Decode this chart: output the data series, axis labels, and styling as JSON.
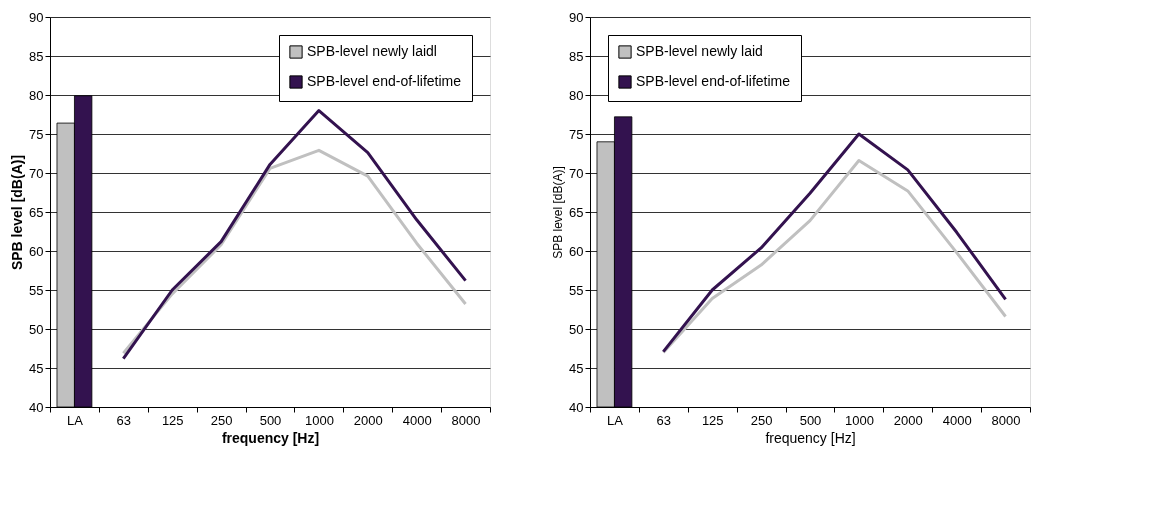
{
  "chart_data": [
    {
      "type": "bar",
      "categories": [
        "LA",
        "63",
        "125",
        "250",
        "500",
        "1000",
        "2000",
        "4000",
        "8000"
      ],
      "xlabel": "frequency [Hz]",
      "ylabel": "SPB level [dB(A)]",
      "ylim": [
        40,
        90
      ],
      "yticks": [
        40,
        45,
        50,
        55,
        60,
        65,
        70,
        75,
        80,
        85,
        90
      ],
      "grid": "y",
      "legend": "top right",
      "series": [
        {
          "name": "SPB-level newly laidl",
          "color": "#c0c0c0",
          "values": [
            76.4,
            null,
            null,
            null,
            null,
            null,
            null,
            null,
            null
          ]
        },
        {
          "name": "SPB-level end-of-lifetime",
          "color": "#33124f",
          "values": [
            79.9,
            null,
            null,
            null,
            null,
            null,
            null,
            null,
            null
          ]
        },
        {
          "type": "line",
          "color": "#c0c0c0",
          "values": [
            null,
            46.9,
            54.5,
            60.8,
            70.6,
            72.9,
            69.6,
            61.0,
            53.2
          ]
        },
        {
          "type": "line",
          "color": "#33124f",
          "values": [
            null,
            46.2,
            55.0,
            61.2,
            71.1,
            78.0,
            72.6,
            64.0,
            56.2
          ]
        }
      ]
    },
    {
      "type": "bar",
      "categories": [
        "LA",
        "63",
        "125",
        "250",
        "500",
        "1000",
        "2000",
        "4000",
        "8000"
      ],
      "xlabel": "frequency [Hz]",
      "ylabel": "SPB level [dB(A)]",
      "ylim": [
        40,
        90
      ],
      "yticks": [
        40,
        45,
        50,
        55,
        60,
        65,
        70,
        75,
        80,
        85,
        90
      ],
      "grid": "y",
      "legend": "top left",
      "series": [
        {
          "name": "SPB-level newly laid",
          "color": "#c0c0c0",
          "values": [
            74.0,
            null,
            null,
            null,
            null,
            null,
            null,
            null,
            null
          ]
        },
        {
          "name": "SPB-level end-of-lifetime",
          "color": "#33124f",
          "values": [
            77.2,
            null,
            null,
            null,
            null,
            null,
            null,
            null,
            null
          ]
        },
        {
          "type": "line",
          "color": "#c0c0c0",
          "values": [
            null,
            47.0,
            53.9,
            58.2,
            63.9,
            71.6,
            67.7,
            59.8,
            51.6
          ]
        },
        {
          "type": "line",
          "color": "#33124f",
          "values": [
            null,
            47.1,
            55.0,
            60.4,
            67.4,
            75.0,
            70.4,
            62.4,
            53.8
          ]
        }
      ]
    }
  ]
}
